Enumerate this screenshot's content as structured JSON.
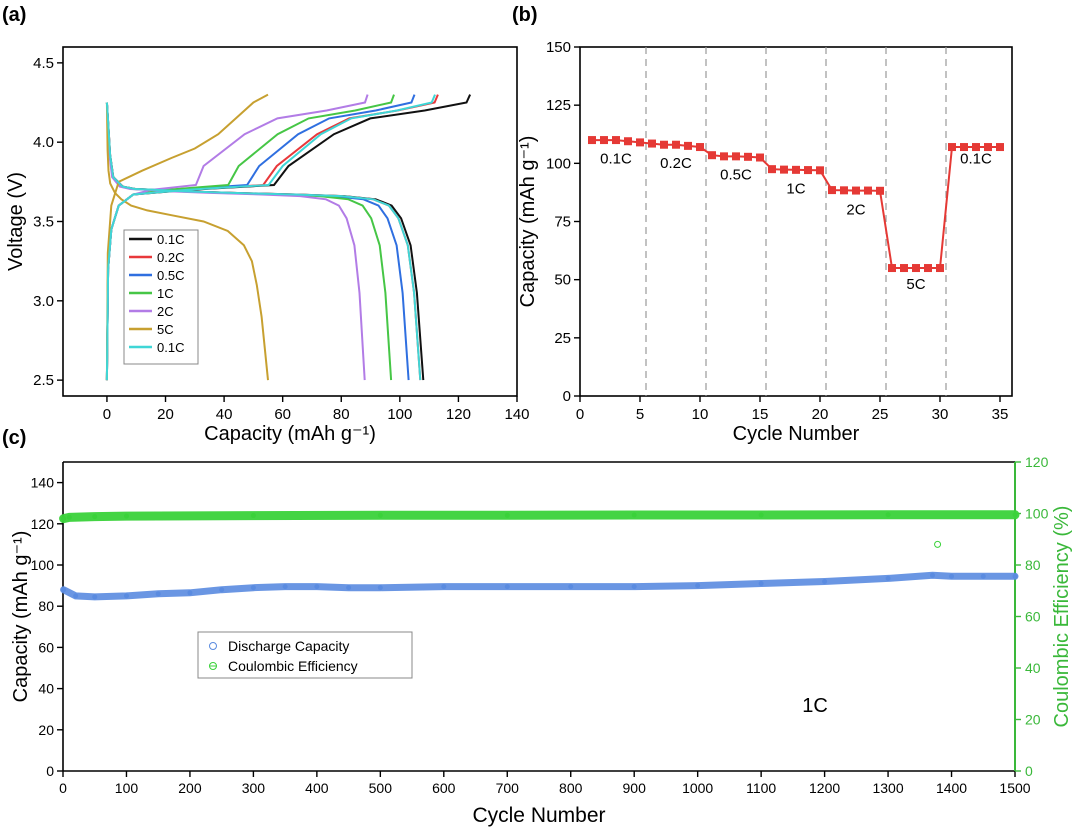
{
  "colors": {
    "c01": "#111111",
    "c02": "#e8383b",
    "c03": "#2f6fe0",
    "c1": "#46c646",
    "c2": "#b27ce6",
    "c5": "#c7a030",
    "c01b": "#3fd6d6",
    "rate_line": "#e53935",
    "discharge": "#5a8be0",
    "ce": "#3ad23a",
    "ce_axis": "#3ab83a",
    "black": "#000000",
    "grid_dash": "#999999"
  },
  "chart_data": [
    {
      "panel": "(a)",
      "type": "line",
      "title": "",
      "xlabel": "Capacity (mAh g⁻¹)",
      "ylabel": "Voltage (V)",
      "xlim": [
        -15,
        140
      ],
      "ylim": [
        2.4,
        4.6
      ],
      "xticks": [
        "0",
        "20",
        "40",
        "60",
        "80",
        "100",
        "120",
        "140"
      ],
      "yticks": [
        "2.5",
        "3.0",
        "3.5",
        "4.0",
        "4.5"
      ],
      "legend_position": "lower-left",
      "series": [
        {
          "name": "0.1C",
          "color_key": "c01",
          "discharge_end": 108,
          "charge_end": 124,
          "charge_mid": 62
        },
        {
          "name": "0.2C",
          "color_key": "c02",
          "discharge_end": 107,
          "charge_end": 113,
          "charge_mid": 58
        },
        {
          "name": "0.5C",
          "color_key": "c03",
          "discharge_end": 103,
          "charge_end": 105,
          "charge_mid": 52
        },
        {
          "name": "1C",
          "color_key": "c1",
          "discharge_end": 97,
          "charge_end": 98,
          "charge_mid": 45
        },
        {
          "name": "2C",
          "color_key": "c2",
          "discharge_end": 88,
          "charge_end": 89,
          "charge_mid": 33
        },
        {
          "name": "5C",
          "color_key": "c5",
          "discharge_end": 55,
          "charge_end": 55,
          "charge_mid": 25
        },
        {
          "name": "0.1C",
          "color_key": "c01b",
          "discharge_end": 107,
          "charge_end": 112,
          "charge_mid": 60
        }
      ]
    },
    {
      "panel": "(b)",
      "type": "line",
      "title": "",
      "xlabel": "Cycle Number",
      "ylabel": "Capacity (mAh g⁻¹)",
      "xlim": [
        0,
        36
      ],
      "ylim": [
        0,
        150
      ],
      "xticks": [
        "0",
        "5",
        "10",
        "15",
        "20",
        "25",
        "30",
        "35"
      ],
      "yticks": [
        "0",
        "25",
        "50",
        "75",
        "100",
        "125",
        "150"
      ],
      "separators_at_cycle": [
        5.5,
        10.5,
        15.5,
        20.5,
        25.5,
        30.5
      ],
      "rate_labels": [
        {
          "text": "0.1C",
          "cycle": 3,
          "capacity": 100
        },
        {
          "text": "0.2C",
          "cycle": 8,
          "capacity": 98
        },
        {
          "text": "0.5C",
          "cycle": 13,
          "capacity": 93
        },
        {
          "text": "1C",
          "cycle": 18,
          "capacity": 87
        },
        {
          "text": "2C",
          "cycle": 23,
          "capacity": 78
        },
        {
          "text": "5C",
          "cycle": 28,
          "capacity": 46
        },
        {
          "text": "0.1C",
          "cycle": 33,
          "capacity": 100
        }
      ],
      "series": [
        {
          "name": "Capacity",
          "x": [
            1,
            2,
            3,
            4,
            5,
            6,
            7,
            8,
            9,
            10,
            11,
            12,
            13,
            14,
            15,
            16,
            17,
            18,
            19,
            20,
            21,
            22,
            23,
            24,
            25,
            26,
            27,
            28,
            29,
            30,
            31,
            32,
            33,
            34,
            35
          ],
          "values": [
            110,
            110,
            110,
            109.5,
            109,
            108.5,
            108,
            108,
            107.5,
            107,
            103.5,
            103,
            103,
            102.8,
            102.5,
            97.5,
            97.3,
            97.2,
            97.1,
            97,
            88.5,
            88.4,
            88.3,
            88.3,
            88.2,
            55,
            55,
            55,
            55,
            55,
            107,
            107,
            107,
            107,
            107
          ]
        }
      ]
    },
    {
      "panel": "(c)",
      "type": "scatter",
      "title": "",
      "xlabel": "Cycle Number",
      "ylabel": "Capacity (mAh g⁻¹)",
      "ylabel_right": "Coulombic Efficiency (%)",
      "xlim": [
        0,
        1500
      ],
      "ylim": [
        0,
        150
      ],
      "ylim_right": [
        0,
        120
      ],
      "xticks": [
        "0",
        "100",
        "200",
        "300",
        "400",
        "500",
        "600",
        "700",
        "800",
        "900",
        "1000",
        "1100",
        "1200",
        "1300",
        "1400",
        "1500"
      ],
      "yticks": [
        "0",
        "20",
        "40",
        "60",
        "80",
        "100",
        "120",
        "140"
      ],
      "yticks_right": [
        "0",
        "20",
        "40",
        "60",
        "80",
        "100",
        "120"
      ],
      "annotation": "1C",
      "legend": [
        "Discharge Capacity",
        "Coulombic Efficiency"
      ],
      "series": [
        {
          "name": "Discharge Capacity",
          "x": [
            1,
            20,
            50,
            100,
            150,
            200,
            250,
            300,
            350,
            400,
            450,
            500,
            600,
            700,
            800,
            900,
            1000,
            1100,
            1200,
            1300,
            1370,
            1400,
            1450,
            1500
          ],
          "values": [
            88,
            85,
            84.5,
            85,
            86,
            86.5,
            88,
            89,
            89.5,
            89.5,
            89,
            89,
            89.5,
            89.5,
            89.5,
            89.5,
            90,
            91,
            92,
            93.5,
            95,
            94.5,
            94.5,
            94.5
          ]
        },
        {
          "name": "Coulombic Efficiency",
          "x": [
            1,
            10,
            50,
            100,
            300,
            500,
            700,
            900,
            1100,
            1300,
            1500
          ],
          "values": [
            98,
            98.5,
            98.8,
            99,
            99.2,
            99.3,
            99.3,
            99.4,
            99.4,
            99.5,
            99.5
          ],
          "outliers": [
            {
              "x": 1378,
              "value": 88
            }
          ]
        }
      ]
    }
  ]
}
